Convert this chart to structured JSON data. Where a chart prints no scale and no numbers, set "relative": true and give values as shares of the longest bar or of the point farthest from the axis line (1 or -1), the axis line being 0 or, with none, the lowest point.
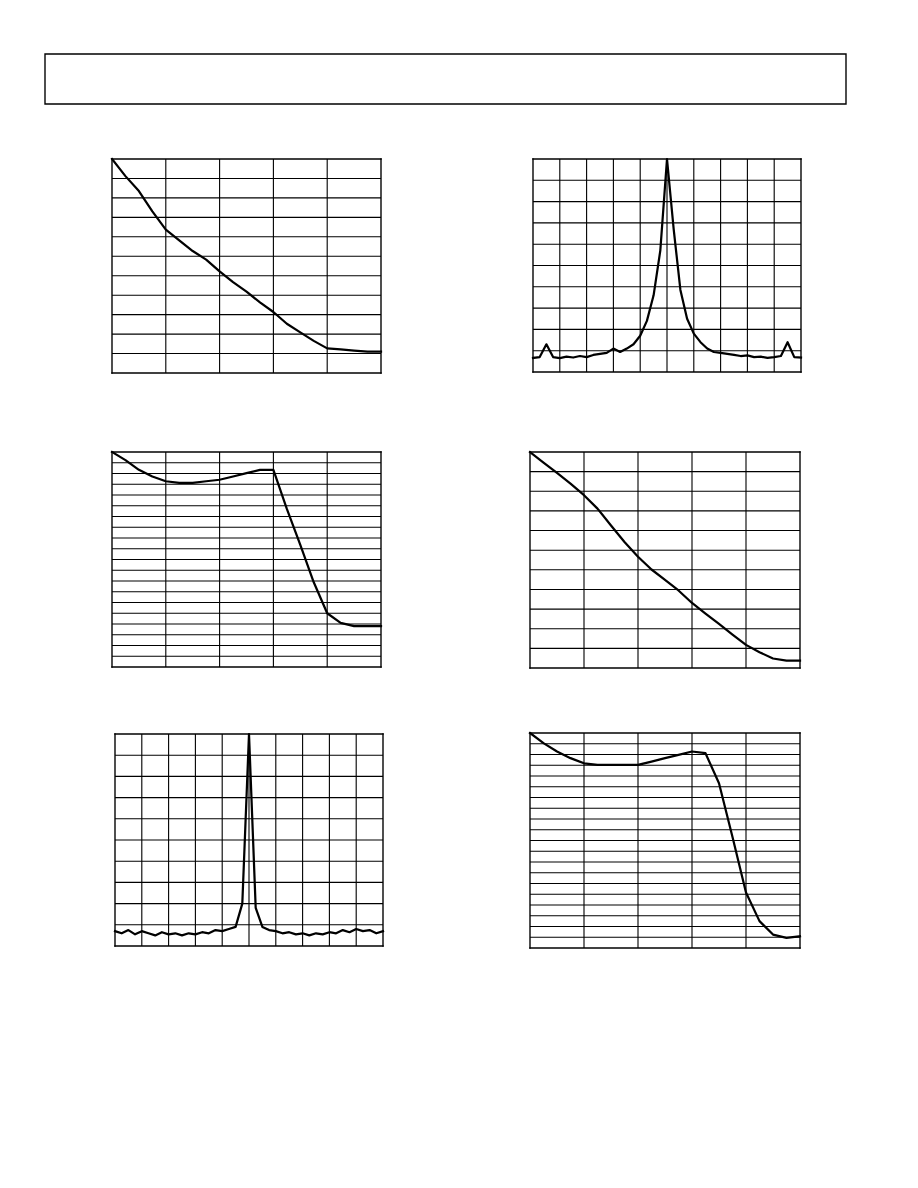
{
  "chart_data": [
    {
      "type": "line",
      "relative": true,
      "grid": true,
      "categories": [
        null,
        null,
        null,
        null,
        null,
        null,
        null,
        null,
        null,
        null,
        null,
        null,
        null,
        null,
        null,
        null,
        null,
        null,
        null,
        null,
        null
      ],
      "series": [
        {
          "color": "#000000",
          "values": [
            1.0,
            0.92,
            0.85,
            0.755,
            0.67,
            0.62,
            0.57,
            0.53,
            0.475,
            0.425,
            0.38,
            0.33,
            0.285,
            0.23,
            0.19,
            0.15,
            0.115,
            0.11,
            0.105,
            0.1,
            0.1
          ]
        }
      ]
    },
    {
      "type": "line",
      "relative": true,
      "grid": true,
      "categories": [
        null,
        null,
        null,
        null,
        null,
        null,
        null,
        null,
        null,
        null,
        null,
        null,
        null,
        null,
        null,
        null,
        null,
        null,
        null,
        null,
        null,
        null,
        null,
        null,
        null,
        null,
        null,
        null,
        null,
        null,
        null,
        null,
        null,
        null,
        null,
        null,
        null,
        null,
        null,
        null,
        null
      ],
      "series": [
        {
          "color": "#000000",
          "values": [
            0.066,
            0.07,
            0.13,
            0.07,
            0.065,
            0.072,
            0.068,
            0.075,
            0.07,
            0.08,
            0.085,
            0.09,
            0.11,
            0.094,
            0.11,
            0.13,
            0.17,
            0.24,
            0.36,
            0.57,
            1.0,
            0.67,
            0.385,
            0.25,
            0.18,
            0.14,
            0.11,
            0.094,
            0.09,
            0.085,
            0.08,
            0.075,
            0.078,
            0.07,
            0.072,
            0.066,
            0.07,
            0.075,
            0.14,
            0.07,
            0.068
          ]
        }
      ]
    },
    {
      "type": "line",
      "relative": true,
      "grid": true,
      "categories": [
        null,
        null,
        null,
        null,
        null,
        null,
        null,
        null,
        null,
        null,
        null,
        null,
        null,
        null,
        null,
        null,
        null,
        null,
        null,
        null,
        null
      ],
      "series": [
        {
          "color": "#000000",
          "values": [
            1.0,
            0.962,
            0.917,
            0.886,
            0.864,
            0.856,
            0.856,
            0.864,
            0.871,
            0.886,
            0.902,
            0.917,
            0.917,
            0.735,
            0.568,
            0.394,
            0.25,
            0.205,
            0.19,
            0.19,
            0.19
          ]
        }
      ]
    },
    {
      "type": "line",
      "relative": true,
      "grid": true,
      "categories": [
        null,
        null,
        null,
        null,
        null,
        null,
        null,
        null,
        null,
        null,
        null,
        null,
        null,
        null,
        null,
        null,
        null,
        null,
        null,
        null,
        null
      ],
      "series": [
        {
          "color": "#000000",
          "values": [
            1.0,
            0.951,
            0.903,
            0.854,
            0.8,
            0.738,
            0.66,
            0.583,
            0.515,
            0.456,
            0.408,
            0.359,
            0.301,
            0.252,
            0.204,
            0.155,
            0.107,
            0.073,
            0.044,
            0.034,
            0.034
          ]
        }
      ]
    },
    {
      "type": "line",
      "relative": true,
      "grid": true,
      "categories": [
        null,
        null,
        null,
        null,
        null,
        null,
        null,
        null,
        null,
        null,
        null,
        null,
        null,
        null,
        null,
        null,
        null,
        null,
        null,
        null,
        null,
        null,
        null,
        null,
        null,
        null,
        null,
        null,
        null,
        null,
        null,
        null,
        null,
        null,
        null,
        null,
        null,
        null,
        null,
        null,
        null
      ],
      "series": [
        {
          "color": "#000000",
          "values": [
            0.07,
            0.06,
            0.075,
            0.055,
            0.07,
            0.06,
            0.05,
            0.065,
            0.055,
            0.06,
            0.05,
            0.06,
            0.055,
            0.065,
            0.06,
            0.075,
            0.07,
            0.08,
            0.09,
            0.2,
            1.0,
            0.18,
            0.09,
            0.075,
            0.07,
            0.06,
            0.065,
            0.055,
            0.06,
            0.05,
            0.06,
            0.055,
            0.065,
            0.06,
            0.075,
            0.065,
            0.08,
            0.07,
            0.075,
            0.06,
            0.07
          ]
        }
      ]
    },
    {
      "type": "line",
      "relative": true,
      "grid": true,
      "categories": [
        null,
        null,
        null,
        null,
        null,
        null,
        null,
        null,
        null,
        null,
        null,
        null,
        null,
        null,
        null,
        null,
        null,
        null,
        null,
        null,
        null
      ],
      "series": [
        {
          "color": "#000000",
          "values": [
            1.0,
            0.953,
            0.914,
            0.883,
            0.859,
            0.852,
            0.852,
            0.852,
            0.852,
            0.867,
            0.883,
            0.898,
            0.914,
            0.906,
            0.766,
            0.516,
            0.258,
            0.125,
            0.0625,
            0.047,
            0.055
          ]
        }
      ]
    }
  ]
}
